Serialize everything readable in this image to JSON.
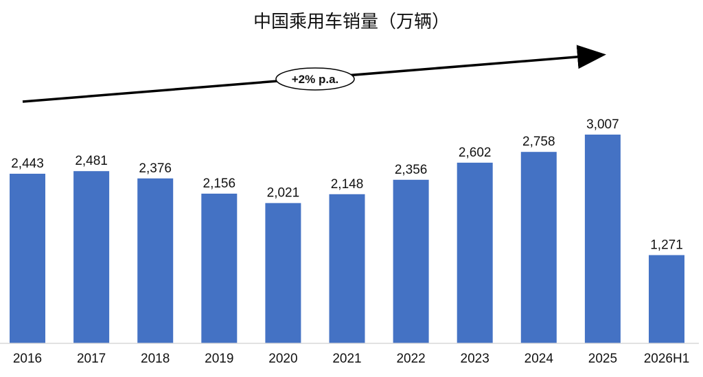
{
  "chart_data": {
    "type": "bar",
    "title": "中国乘用车销量（万辆）",
    "categories": [
      "2016",
      "2017",
      "2018",
      "2019",
      "2020",
      "2021",
      "2022",
      "2023",
      "2024",
      "2025",
      "2026H1"
    ],
    "values": [
      2443,
      2481,
      2376,
      2156,
      2021,
      2148,
      2356,
      2602,
      2758,
      3007,
      1271
    ],
    "value_labels": [
      "2,443",
      "2,481",
      "2,376",
      "2,156",
      "2,021",
      "2,148",
      "2,356",
      "2,602",
      "2,758",
      "3,007",
      "1,271"
    ],
    "ylim": [
      0,
      3500
    ],
    "grid": false,
    "bar_color": "#4472C4",
    "annotation": {
      "text": "+2% p.a.",
      "type": "trend-arrow"
    }
  }
}
